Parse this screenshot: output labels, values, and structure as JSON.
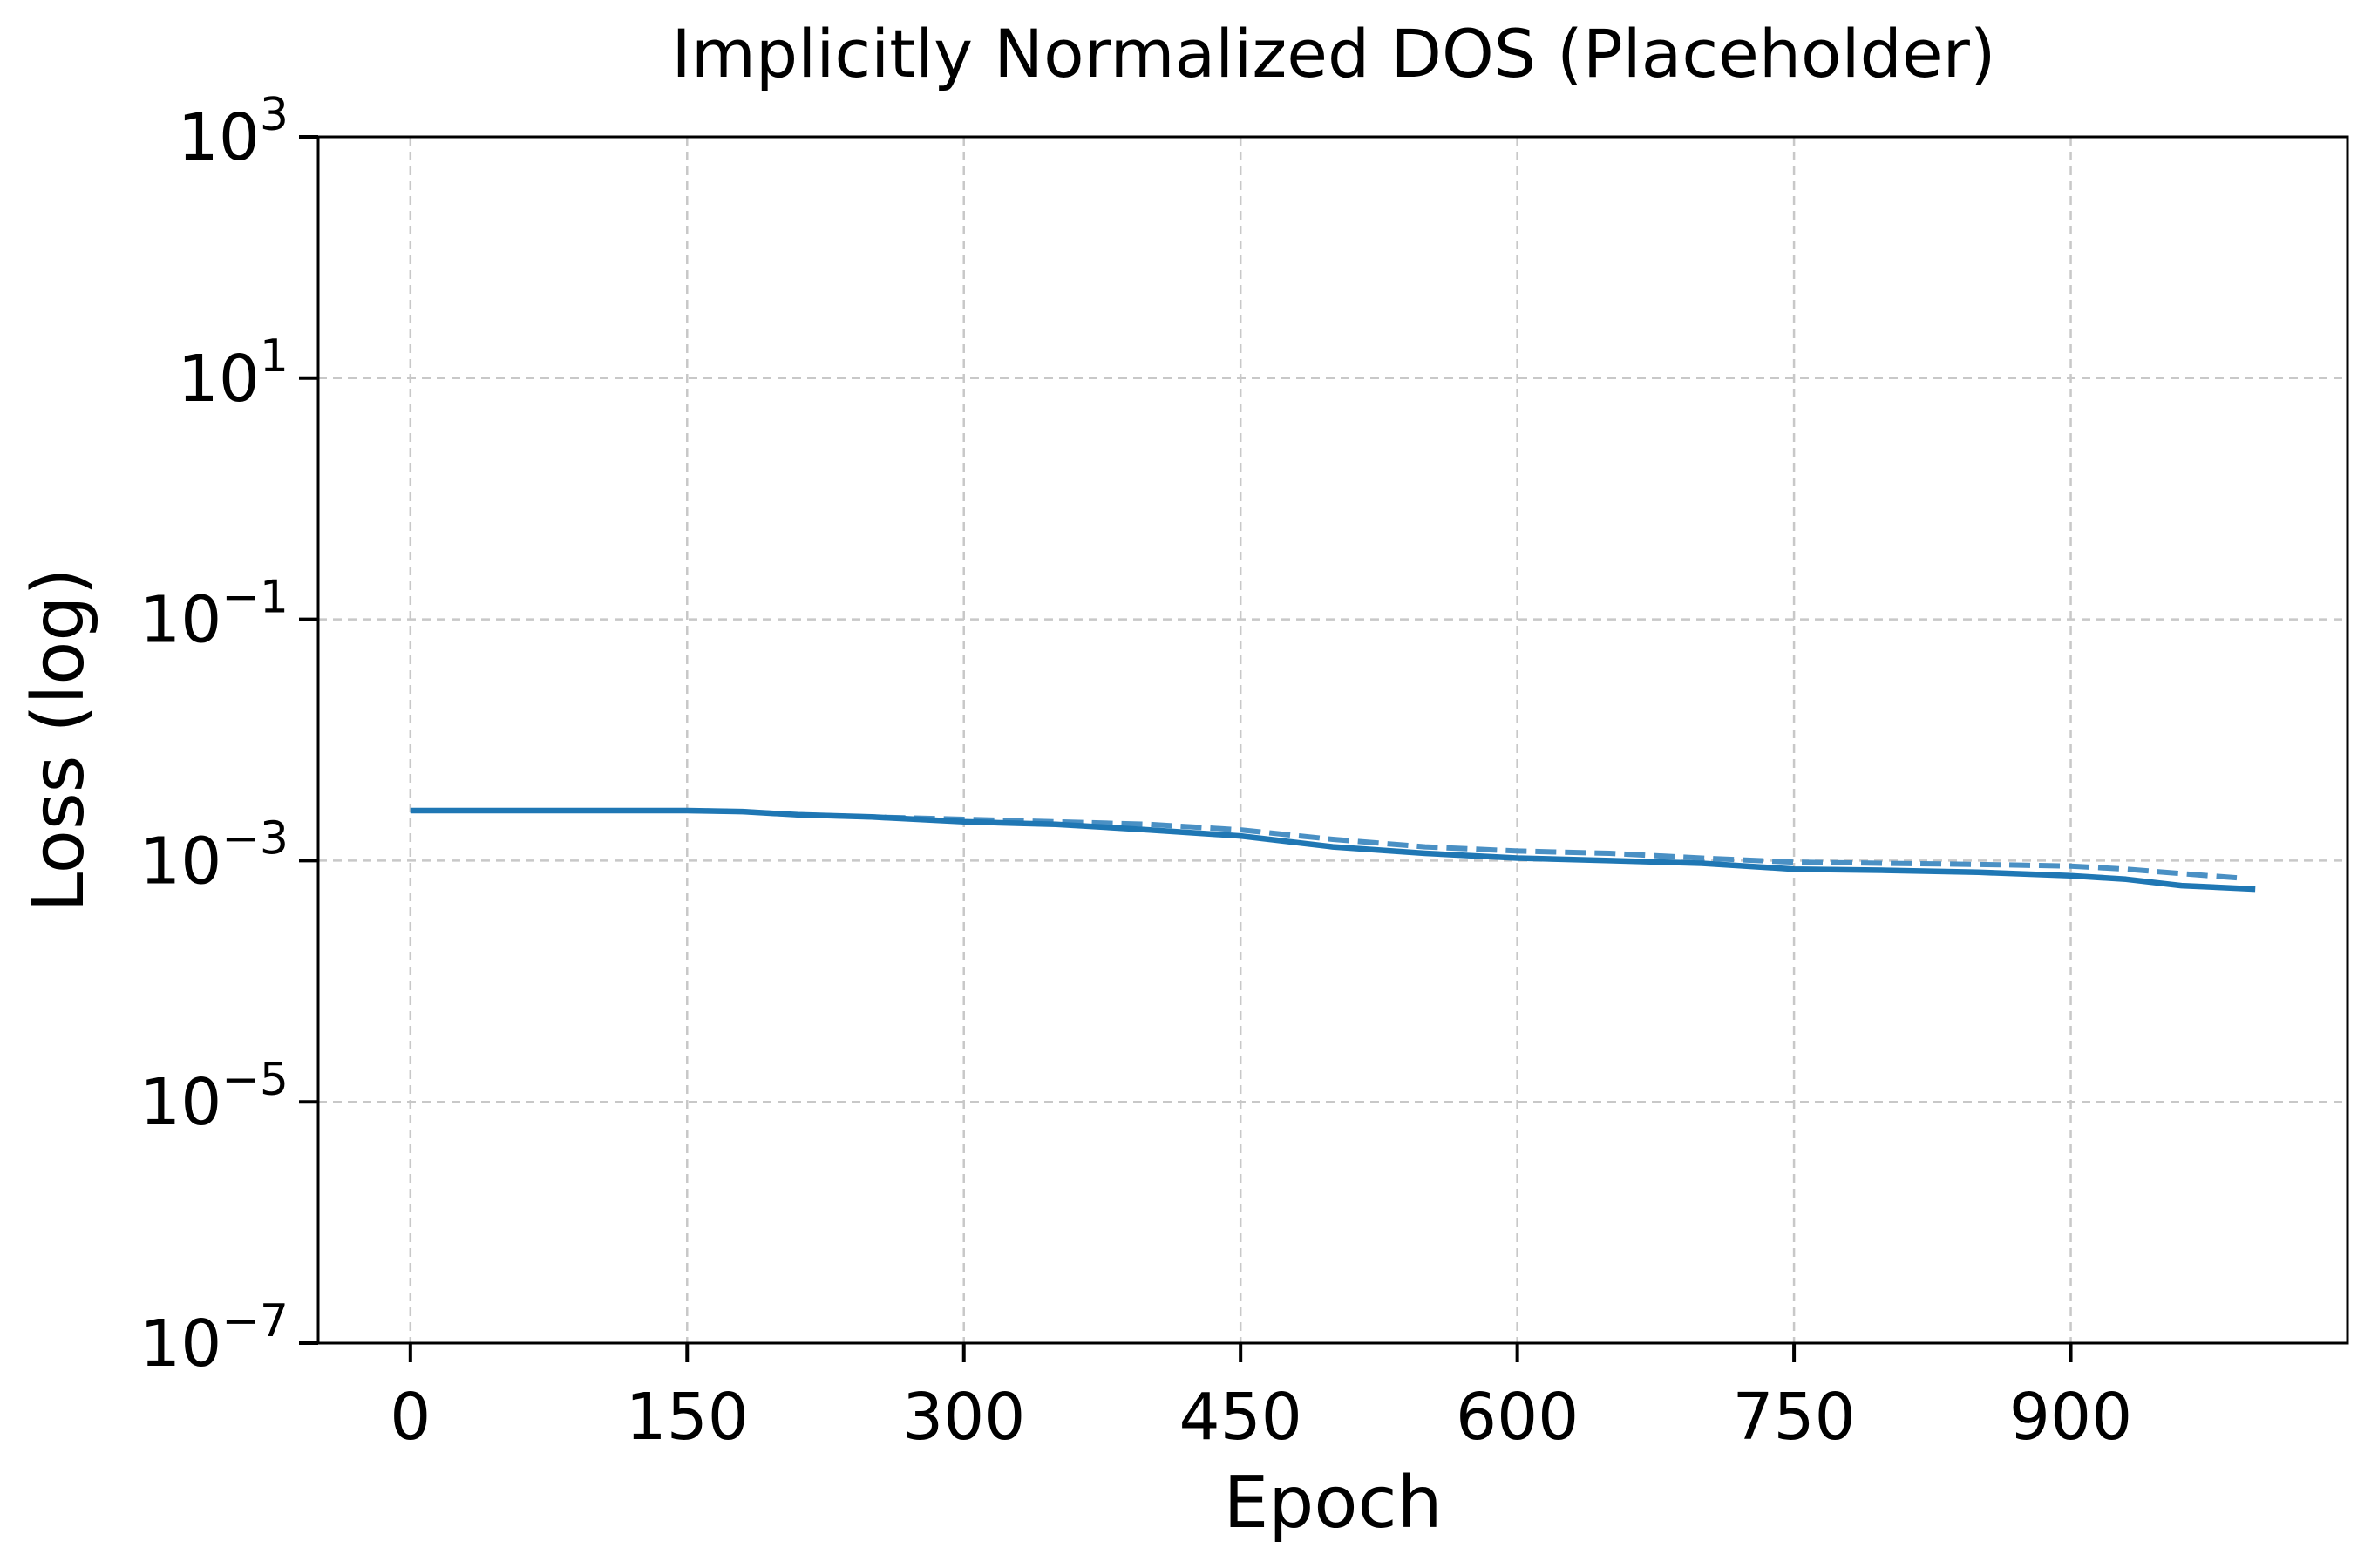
{
  "chart_data": {
    "type": "line",
    "title": "Implicitly Normalized DOS (Placeholder)",
    "xlabel": "Epoch",
    "ylabel": "Loss (log)",
    "xlim": [
      -50,
      1050
    ],
    "ylim": [
      1e-07,
      1000
    ],
    "yscale": "log",
    "grid": true,
    "x_ticks": [
      0,
      150,
      300,
      450,
      600,
      750,
      900
    ],
    "x_tick_labels": [
      "0",
      "150",
      "300",
      "450",
      "600",
      "750",
      "900"
    ],
    "y_ticks": [
      {
        "value": 1000,
        "base": "10",
        "exp": "3"
      },
      {
        "value": 10,
        "base": "10",
        "exp": "1"
      },
      {
        "value": 0.1,
        "base": "10",
        "exp": "−1"
      },
      {
        "value": 0.001,
        "base": "10",
        "exp": "−3"
      },
      {
        "value": 1e-05,
        "base": "10",
        "exp": "−5"
      },
      {
        "value": 1e-07,
        "base": "10",
        "exp": "−7"
      }
    ],
    "series": [
      {
        "style": "solid",
        "color": "#1f77b4",
        "x": [
          0,
          50,
          100,
          150,
          180,
          210,
          250,
          300,
          350,
          400,
          450,
          500,
          550,
          600,
          650,
          700,
          750,
          800,
          850,
          900,
          930,
          960,
          1000
        ],
        "y": [
          0.0026,
          0.0026,
          0.0026,
          0.0026,
          0.00255,
          0.0024,
          0.0023,
          0.0021,
          0.002,
          0.0018,
          0.0016,
          0.0013,
          0.00115,
          0.00105,
          0.001,
          0.00095,
          0.00085,
          0.00083,
          0.0008,
          0.00075,
          0.0007,
          0.00062,
          0.00058
        ]
      },
      {
        "style": "dashed",
        "color": "#4a90c4",
        "x": [
          0,
          50,
          100,
          150,
          180,
          210,
          250,
          300,
          350,
          400,
          450,
          500,
          550,
          600,
          650,
          700,
          750,
          800,
          850,
          900,
          930,
          960,
          990
        ],
        "y": [
          0.0026,
          0.0026,
          0.0026,
          0.0026,
          0.00255,
          0.0024,
          0.0023,
          0.0022,
          0.0021,
          0.002,
          0.0018,
          0.0015,
          0.0013,
          0.0012,
          0.00115,
          0.00105,
          0.00097,
          0.00095,
          0.00093,
          0.0009,
          0.00085,
          0.00078,
          0.00072
        ]
      }
    ]
  }
}
